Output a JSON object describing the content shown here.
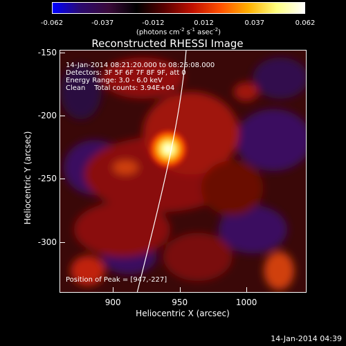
{
  "colorbar": {
    "ticks": [
      "-0.062",
      "-0.037",
      "-0.012",
      "0.012",
      "0.037",
      "0.062"
    ],
    "unit_prefix": "(photons cm",
    "unit_exp1": "-2",
    "unit_mid1": " s",
    "unit_exp2": "-1",
    "unit_mid2": " asec",
    "unit_exp3": "-2",
    "unit_suffix": ")",
    "colors": [
      "#0000ff",
      "#2b0a6e",
      "#3a0a3a",
      "#000000",
      "#5a0000",
      "#c01000",
      "#ff5000",
      "#ffb000",
      "#ffff80",
      "#ffffff"
    ]
  },
  "title": "Reconstructed RHESSI Image",
  "info": {
    "time_range": "14-Jan-2014 08:21:20.000 to 08:26:08.000",
    "detectors": "Detectors: 3F 5F 6F 7F 8F 9F, att 0",
    "energy": "Energy Range: 3.0 - 6.0 keV",
    "clean": "Clean    Total counts: 3.94E+04",
    "peak": "Position of Peak = [947,-227]"
  },
  "axes": {
    "xlabel": "Heliocentric X (arcsec)",
    "ylabel": "Heliocentric Y (arcsec)",
    "xticks": [
      "900",
      "950",
      "1000"
    ],
    "yticks": [
      "-150",
      "-200",
      "-250",
      "-300"
    ],
    "xrange": [
      860,
      1045
    ],
    "yrange": [
      -340,
      -148
    ]
  },
  "peak": {
    "x": 947,
    "y": -227
  },
  "footer_date": "14-Jan-2014 04:39"
}
